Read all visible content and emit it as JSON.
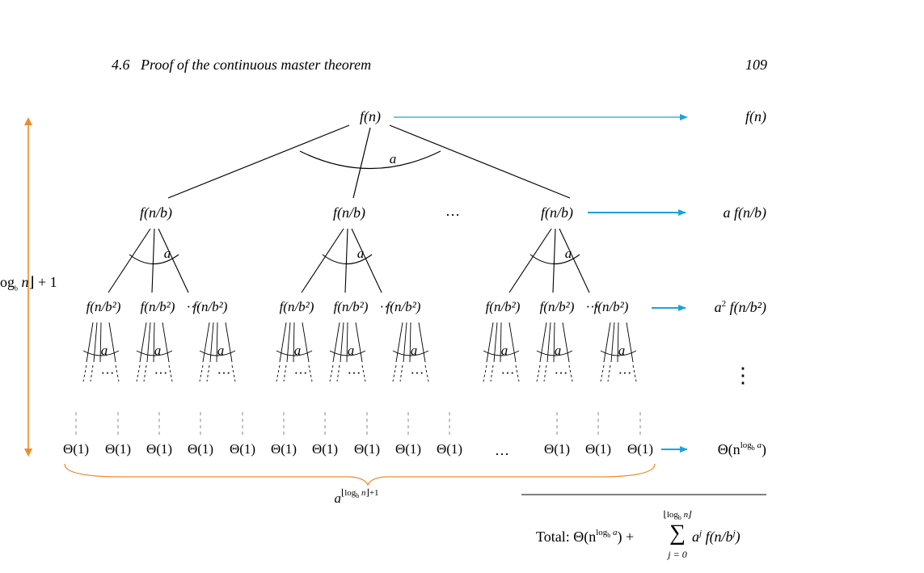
{
  "header": {
    "section": "4.6",
    "title": "Proof of the continuous master theorem",
    "page_number": "109"
  },
  "tree": {
    "root": "f(n)",
    "level1_node": "f(n/b)",
    "level2_node": "f(n/b²)",
    "branch_label": "a",
    "ellipsis": "…",
    "small_ellipsis": "···",
    "vertical_ellipsis": "⋮",
    "leaf": "Θ(1)"
  },
  "height_label": {
    "prefix": "og",
    "sub": "b",
    "var": "n",
    "suffix": "⌋ + 1"
  },
  "leaf_count": {
    "base": "a",
    "exponent": "⌊log",
    "exp_sub": "b",
    "exp_var": "n",
    "exp_tail": "⌋+1"
  },
  "costs": {
    "level0": "f(n)",
    "level1": "a f(n/b)",
    "level2_coef": "a",
    "level2_pow": "2",
    "level2_rest": "f(n/b²)",
    "leaves_base": "Θ(n",
    "leaves_exp": "log",
    "leaves_sub": "b",
    "leaves_a": "a",
    "leaves_close": ")"
  },
  "total": {
    "label": "Total:",
    "theta": "Θ(n",
    "exp": "log",
    "exp_sub": "b",
    "exp_a": "a",
    "plus": ") +",
    "sum": "∑",
    "upper": "⌊log",
    "upper_sub": "b",
    "upper_var": "n⌋",
    "lower": "j = 0",
    "term_a": "a",
    "term_j": "j",
    "term_rest": "f(n/b",
    "term_rest_j": "j",
    "term_close": ")"
  },
  "colors": {
    "arrow_blue": "#1aa3dc",
    "brace_orange": "#f08a2c",
    "dash_gray": "#888888"
  }
}
